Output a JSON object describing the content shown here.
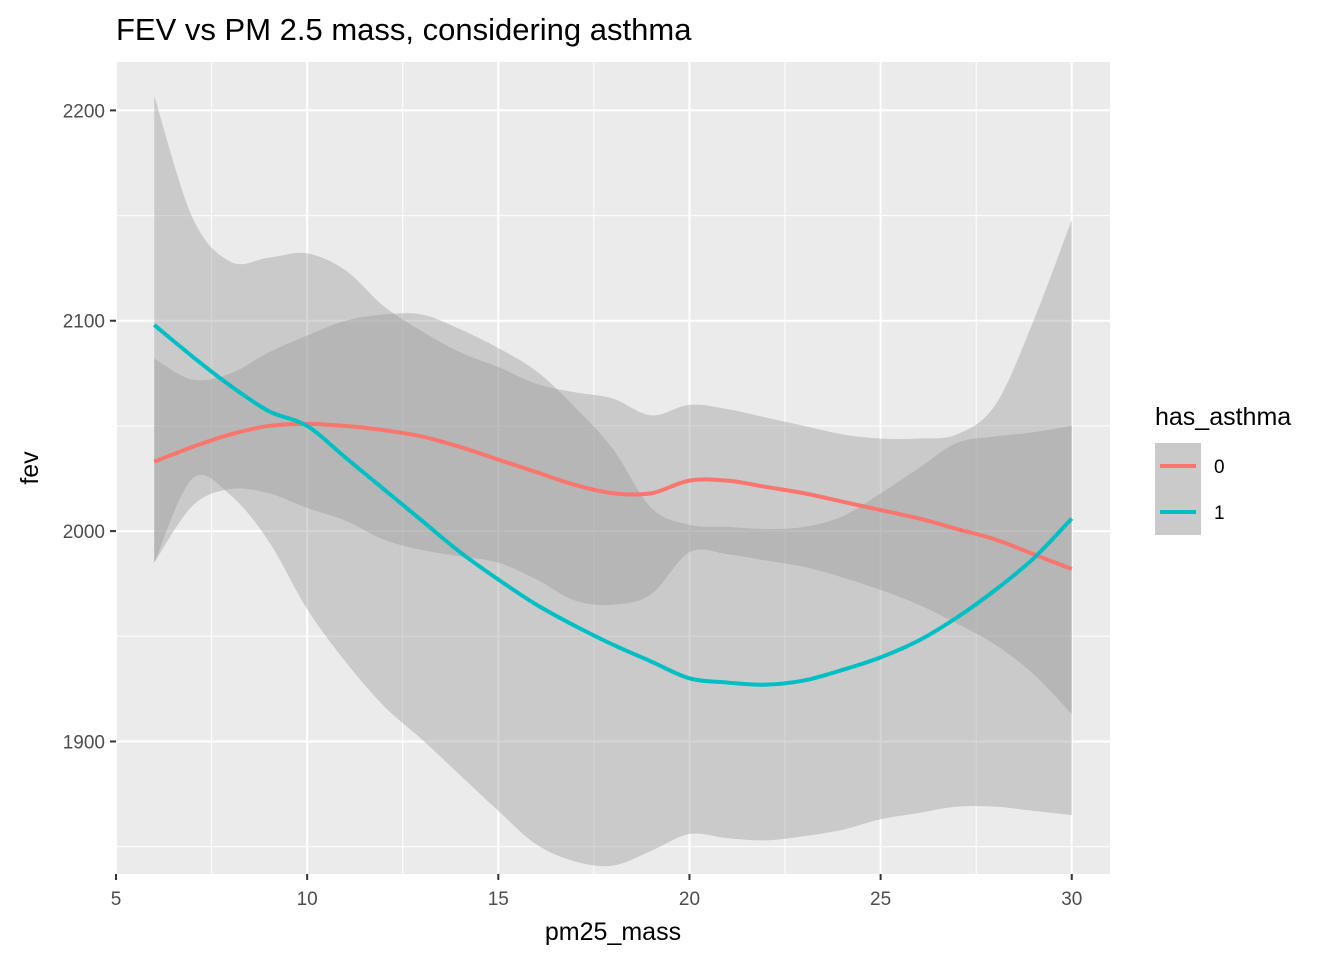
{
  "chart_data": {
    "type": "line",
    "title": "FEV vs PM 2.5 mass, considering asthma",
    "xlabel": "pm25_mass",
    "ylabel": "fev",
    "xlim": [
      5,
      31
    ],
    "ylim": [
      1837,
      2223
    ],
    "x_ticks": [
      5,
      10,
      15,
      20,
      25,
      30
    ],
    "y_ticks": [
      1900,
      2000,
      2100,
      2200
    ],
    "grid": true,
    "legend": {
      "title": "has_asthma",
      "position": "right"
    },
    "series": [
      {
        "name": "0",
        "color": "#F8766D",
        "points": [
          [
            6,
            2033
          ],
          [
            7,
            2040
          ],
          [
            8,
            2046
          ],
          [
            9,
            2050
          ],
          [
            10,
            2051
          ],
          [
            11,
            2050
          ],
          [
            12,
            2048
          ],
          [
            13,
            2045
          ],
          [
            14,
            2040
          ],
          [
            15,
            2034
          ],
          [
            16,
            2028
          ],
          [
            17,
            2022
          ],
          [
            18,
            2018
          ],
          [
            19,
            2018
          ],
          [
            20,
            2024
          ],
          [
            21,
            2024
          ],
          [
            22,
            2021
          ],
          [
            23,
            2018
          ],
          [
            24,
            2014
          ],
          [
            25,
            2010
          ],
          [
            26,
            2006
          ],
          [
            27,
            2001
          ],
          [
            28,
            1996
          ],
          [
            29,
            1989
          ],
          [
            30,
            1982
          ]
        ],
        "lower": [
          [
            6,
            1985
          ],
          [
            7,
            2012
          ],
          [
            8,
            2020
          ],
          [
            9,
            2018
          ],
          [
            10,
            2011
          ],
          [
            11,
            2005
          ],
          [
            12,
            1996
          ],
          [
            13,
            1991
          ],
          [
            14,
            1988
          ],
          [
            15,
            1985
          ],
          [
            16,
            1977
          ],
          [
            17,
            1967
          ],
          [
            18,
            1965
          ],
          [
            19,
            1970
          ],
          [
            20,
            1990
          ],
          [
            21,
            1989
          ],
          [
            22,
            1986
          ],
          [
            23,
            1983
          ],
          [
            24,
            1978
          ],
          [
            25,
            1972
          ],
          [
            26,
            1965
          ],
          [
            27,
            1956
          ],
          [
            28,
            1946
          ],
          [
            29,
            1932
          ],
          [
            30,
            1913
          ]
        ],
        "upper": [
          [
            6,
            2082
          ],
          [
            7,
            2072
          ],
          [
            8,
            2075
          ],
          [
            9,
            2085
          ],
          [
            10,
            2093
          ],
          [
            11,
            2100
          ],
          [
            12,
            2103
          ],
          [
            13,
            2103
          ],
          [
            14,
            2096
          ],
          [
            15,
            2087
          ],
          [
            16,
            2076
          ],
          [
            17,
            2059
          ],
          [
            18,
            2039
          ],
          [
            19,
            2011
          ],
          [
            20,
            2003
          ],
          [
            21,
            2002
          ],
          [
            22,
            2001
          ],
          [
            23,
            2002
          ],
          [
            24,
            2007
          ],
          [
            25,
            2018
          ],
          [
            26,
            2030
          ],
          [
            27,
            2042
          ],
          [
            28,
            2045
          ],
          [
            29,
            2047
          ],
          [
            30,
            2050
          ]
        ]
      },
      {
        "name": "1",
        "color": "#00BFC4",
        "points": [
          [
            6,
            2098
          ],
          [
            7,
            2083
          ],
          [
            8,
            2069
          ],
          [
            9,
            2057
          ],
          [
            10,
            2050
          ],
          [
            11,
            2035
          ],
          [
            12,
            2020
          ],
          [
            13,
            2005
          ],
          [
            14,
            1990
          ],
          [
            15,
            1977
          ],
          [
            16,
            1965
          ],
          [
            17,
            1955
          ],
          [
            18,
            1946
          ],
          [
            19,
            1938
          ],
          [
            20,
            1930
          ],
          [
            21,
            1928
          ],
          [
            22,
            1927
          ],
          [
            23,
            1929
          ],
          [
            24,
            1934
          ],
          [
            25,
            1940
          ],
          [
            26,
            1948
          ],
          [
            27,
            1959
          ],
          [
            28,
            1972
          ],
          [
            29,
            1987
          ],
          [
            30,
            2006
          ]
        ],
        "lower": [
          [
            6,
            1985
          ],
          [
            7,
            2025
          ],
          [
            8,
            2017
          ],
          [
            9,
            1995
          ],
          [
            10,
            1963
          ],
          [
            11,
            1938
          ],
          [
            12,
            1917
          ],
          [
            13,
            1901
          ],
          [
            14,
            1884
          ],
          [
            15,
            1867
          ],
          [
            16,
            1851
          ],
          [
            17,
            1843
          ],
          [
            18,
            1841
          ],
          [
            19,
            1848
          ],
          [
            20,
            1856
          ],
          [
            21,
            1854
          ],
          [
            22,
            1853
          ],
          [
            23,
            1855
          ],
          [
            24,
            1858
          ],
          [
            25,
            1863
          ],
          [
            26,
            1866
          ],
          [
            27,
            1869
          ],
          [
            28,
            1869
          ],
          [
            29,
            1867
          ],
          [
            30,
            1865
          ]
        ],
        "upper": [
          [
            6,
            2207
          ],
          [
            7,
            2149
          ],
          [
            8,
            2128
          ],
          [
            9,
            2130
          ],
          [
            10,
            2132
          ],
          [
            11,
            2124
          ],
          [
            12,
            2107
          ],
          [
            13,
            2095
          ],
          [
            14,
            2085
          ],
          [
            15,
            2078
          ],
          [
            16,
            2070
          ],
          [
            17,
            2066
          ],
          [
            18,
            2063
          ],
          [
            19,
            2055
          ],
          [
            20,
            2060
          ],
          [
            21,
            2058
          ],
          [
            22,
            2054
          ],
          [
            23,
            2050
          ],
          [
            24,
            2046
          ],
          [
            25,
            2044
          ],
          [
            26,
            2044
          ],
          [
            27,
            2046
          ],
          [
            28,
            2060
          ],
          [
            29,
            2100
          ],
          [
            30,
            2148
          ]
        ]
      }
    ]
  }
}
